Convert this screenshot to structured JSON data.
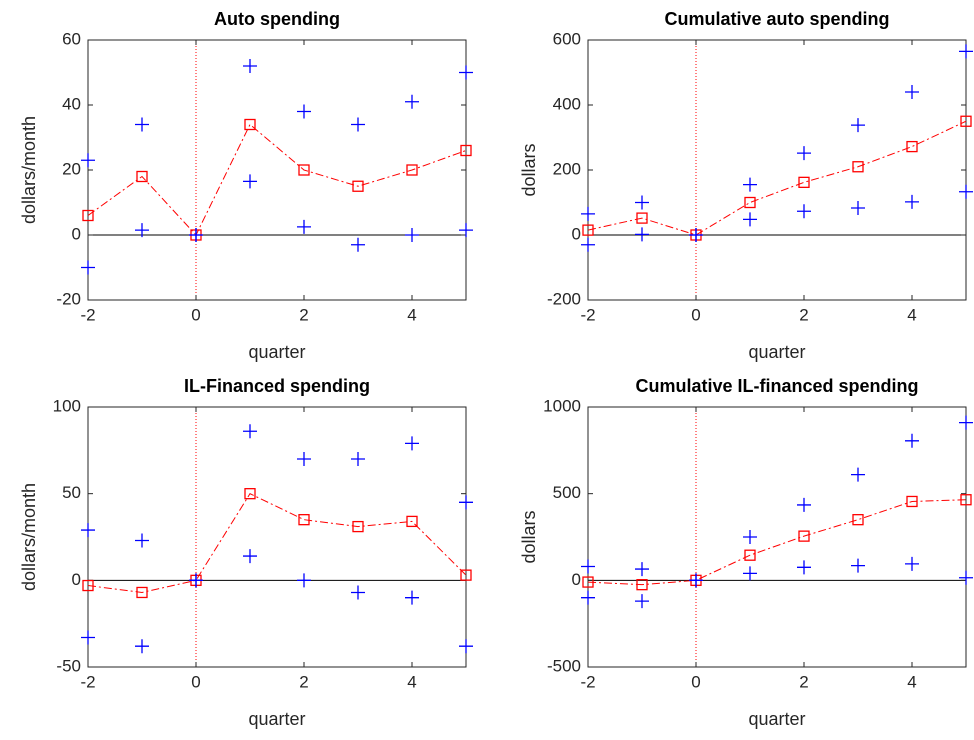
{
  "chart_data": [
    {
      "type": "line",
      "title": "Auto spending",
      "xlabel": "quarter",
      "ylabel": "dollars/month",
      "x": [
        -2,
        -1,
        0,
        1,
        2,
        3,
        4,
        5
      ],
      "xlim": [
        -2,
        5
      ],
      "xticks": [
        -2,
        0,
        2,
        4
      ],
      "ylim": [
        -20,
        60
      ],
      "yticks": [
        -20,
        0,
        20,
        40,
        60
      ],
      "hline": 0,
      "vline": 0,
      "series": [
        {
          "color": "#ff0000",
          "marker": "square",
          "line": "dashdot",
          "values": [
            6,
            18,
            0,
            34,
            20,
            15,
            20,
            26
          ]
        },
        {
          "color": "#0000ff",
          "marker": "plus",
          "line": "none",
          "values": [
            23,
            34,
            0,
            52,
            38,
            34,
            41,
            50
          ]
        },
        {
          "color": "#0000ff",
          "marker": "plus",
          "line": "none",
          "values": [
            -10,
            1.5,
            0,
            16.5,
            2.5,
            -3,
            0,
            1.5
          ]
        }
      ]
    },
    {
      "type": "line",
      "title": "Cumulative auto spending",
      "xlabel": "quarter",
      "ylabel": "dollars",
      "x": [
        -2,
        -1,
        0,
        1,
        2,
        3,
        4,
        5
      ],
      "xlim": [
        -2,
        5
      ],
      "xticks": [
        -2,
        0,
        2,
        4
      ],
      "ylim": [
        -200,
        600
      ],
      "yticks": [
        -200,
        0,
        200,
        400,
        600
      ],
      "hline": 0,
      "vline": 0,
      "series": [
        {
          "color": "#ff0000",
          "marker": "square",
          "line": "dashdot",
          "values": [
            15,
            52,
            0,
            100,
            162,
            210,
            272,
            350
          ]
        },
        {
          "color": "#0000ff",
          "marker": "plus",
          "line": "none",
          "values": [
            65,
            100,
            0,
            155,
            252,
            338,
            440,
            565
          ]
        },
        {
          "color": "#0000ff",
          "marker": "plus",
          "line": "none",
          "values": [
            -30,
            2,
            0,
            48,
            73,
            83,
            102,
            133
          ]
        }
      ]
    },
    {
      "type": "line",
      "title": "IL-Financed spending",
      "xlabel": "quarter",
      "ylabel": "dollars/month",
      "x": [
        -2,
        -1,
        0,
        1,
        2,
        3,
        4,
        5
      ],
      "xlim": [
        -2,
        5
      ],
      "xticks": [
        -2,
        0,
        2,
        4
      ],
      "ylim": [
        -50,
        100
      ],
      "yticks": [
        -50,
        0,
        50,
        100
      ],
      "hline": 0,
      "vline": 0,
      "series": [
        {
          "color": "#ff0000",
          "marker": "square",
          "line": "dashdot",
          "values": [
            -3,
            -7,
            0,
            50,
            35,
            31,
            34,
            3
          ]
        },
        {
          "color": "#0000ff",
          "marker": "plus",
          "line": "none",
          "values": [
            29,
            23,
            0,
            86,
            70,
            70,
            79,
            45
          ]
        },
        {
          "color": "#0000ff",
          "marker": "plus",
          "line": "none",
          "values": [
            -33,
            -38,
            0,
            14,
            0,
            -7,
            -10,
            -38
          ]
        }
      ]
    },
    {
      "type": "line",
      "title": "Cumulative IL-financed spending",
      "xlabel": "quarter",
      "ylabel": "dollars",
      "x": [
        -2,
        -1,
        0,
        1,
        2,
        3,
        4,
        5
      ],
      "xlim": [
        -2,
        5
      ],
      "xticks": [
        -2,
        0,
        2,
        4
      ],
      "ylim": [
        -500,
        1000
      ],
      "yticks": [
        -500,
        0,
        500,
        1000
      ],
      "hline": 0,
      "vline": 0,
      "series": [
        {
          "color": "#ff0000",
          "marker": "square",
          "line": "dashdot",
          "values": [
            -10,
            -25,
            0,
            145,
            255,
            350,
            455,
            465
          ]
        },
        {
          "color": "#0000ff",
          "marker": "plus",
          "line": "none",
          "values": [
            80,
            65,
            0,
            250,
            435,
            610,
            805,
            910
          ]
        },
        {
          "color": "#0000ff",
          "marker": "plus",
          "line": "none",
          "values": [
            -100,
            -120,
            0,
            40,
            75,
            85,
            95,
            15
          ]
        }
      ]
    }
  ]
}
